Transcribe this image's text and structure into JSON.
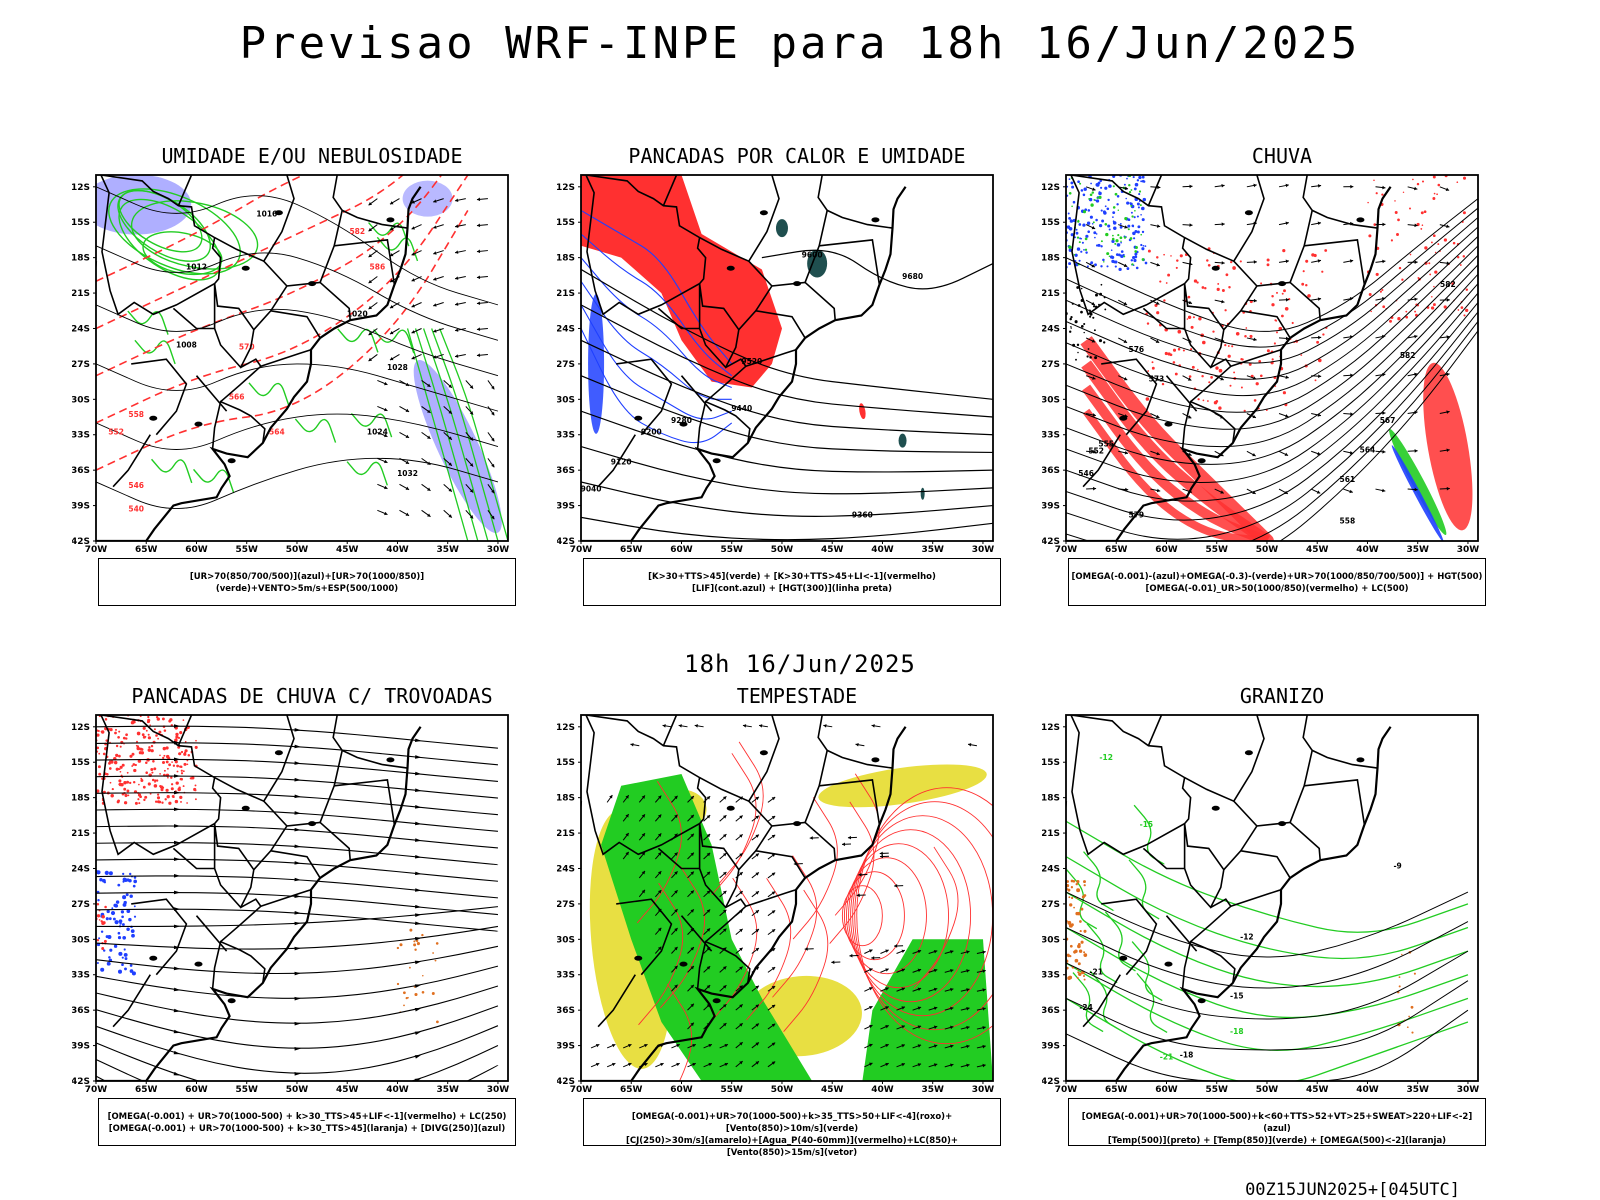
{
  "header": {
    "title": "Previsao WRF-INPE  para 18h 16/Jun/2025"
  },
  "mid_title": "18h 16/Jun/2025",
  "footer": "00Z15JUN2025+[045UTC]",
  "axes": {
    "lat_labels": [
      "12S",
      "15S",
      "18S",
      "21S",
      "24S",
      "27S",
      "30S",
      "33S",
      "36S",
      "39S",
      "42S"
    ],
    "lon_labels": [
      "70W",
      "65W",
      "60W",
      "55W",
      "50W",
      "45W",
      "40W",
      "35W",
      "30W"
    ]
  },
  "colors": {
    "blue": "#1f3fff",
    "lavender": "#9b9bff",
    "green": "#22cc22",
    "red": "#ff3030",
    "dark_teal": "#1f4f4f",
    "yellow": "#e6dc2d",
    "orange": "#e07020",
    "purple": "#7a3fc0"
  },
  "panels": [
    {
      "title": "UMIDADE E/OU NEBULOSIDADE",
      "legend": [
        "[UR>70(850/700/500)](azul)+[UR>70(1000/850)](verde)+VENTO>5m/s+ESP(500/1000)"
      ],
      "labels": [
        "1012",
        "1016",
        "1020",
        "1024",
        "1028",
        "1032",
        "1008",
        "570",
        "566",
        "558",
        "552",
        "546",
        "540",
        "582",
        "586",
        "564"
      ]
    },
    {
      "title": "PANCADAS POR CALOR E UMIDADE",
      "legend": [
        "[K>30+TTS>45](verde) + [K>30+TTS>45+LI<-1](vermelho)",
        "[LIF](cont.azul) + [HGT(300)](linha preta)"
      ],
      "labels": [
        "9520",
        "9600",
        "9680",
        "9440",
        "9360",
        "9280",
        "9200",
        "9120",
        "9040"
      ]
    },
    {
      "title": "CHUVA",
      "legend": [
        "[OMEGA(-0.001)-(azul)+OMEGA(-0.3)-(verde)+UR>70(1000/850/700/500)] + HGT(500)",
        "[OMEGA(-0.01)_UR>50(1000/850)(vermelho) + LC(500)"
      ],
      "labels": [
        "582",
        "576",
        "573",
        "570",
        "567",
        "564",
        "561",
        "558",
        "555",
        "552",
        "546",
        "579"
      ]
    },
    {
      "title": "PANCADAS DE CHUVA C/ TROVOADAS",
      "legend": [
        "[OMEGA(-0.001) + UR>70(1000-500) + k>30_TTS>45+LIF<-1](vermelho) + LC(250)",
        "[OMEGA(-0.001) + UR>70(1000-500) + k>30_TTS>45](laranja) + [DIVG(250)](azul)"
      ],
      "labels": []
    },
    {
      "title": "TEMPESTADE",
      "legend": [
        "[OMEGA(-0.001)+UR>70(1000-500)+k>35_TTS>50+LIF<-4](roxo)+[Vento(850)>10m/s](verde)",
        "[CJ(250)>30m/s](amarelo)+[Agua_P(40-60mm)](vermelho)+LC(850)+[Vento(850)>15m/s](vetor)"
      ],
      "labels": []
    },
    {
      "title": "GRANIZO",
      "legend": [
        "[OMEGA(-0.001)+UR>70(1000-500)+k<60+TTS>52+VT>25+SWEAT>220+LIF<-2](azul)",
        "[Temp(500)](preto) + [Temp(850)](verde) + [OMEGA(500)<-2](laranja)"
      ],
      "labels": [
        "-12",
        "-15",
        "-18",
        "-21",
        "-24",
        "-9"
      ]
    }
  ]
}
